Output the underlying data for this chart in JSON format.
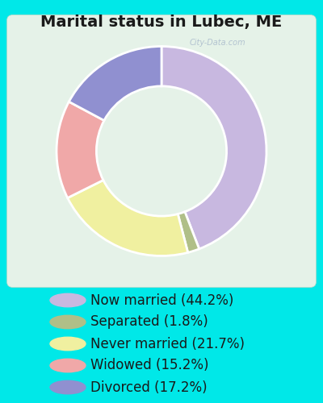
{
  "title": "Marital status in Lubec, ME",
  "bg_cyan": "#00e8e8",
  "bg_chart": "#e8f5ee",
  "slices": [
    {
      "label": "Now married (44.2%)",
      "value": 44.2,
      "color": "#c8b8e0"
    },
    {
      "label": "Separated (1.8%)",
      "value": 1.8,
      "color": "#b0bf88"
    },
    {
      "label": "Never married (21.7%)",
      "value": 21.7,
      "color": "#f0f0a0"
    },
    {
      "label": "Widowed (15.2%)",
      "value": 15.2,
      "color": "#f0a8a8"
    },
    {
      "label": "Divorced (17.2%)",
      "value": 17.2,
      "color": "#9090d0"
    }
  ],
  "legend_labels": [
    "Now married (44.2%)",
    "Separated (1.8%)",
    "Never married (21.7%)",
    "Widowed (15.2%)",
    "Divorced (17.2%)"
  ],
  "legend_colors": [
    "#c8b8e0",
    "#b0bf88",
    "#f0f0a0",
    "#f0a8a8",
    "#9090d0"
  ],
  "title_fontsize": 14,
  "legend_fontsize": 12,
  "donut_width": 0.38,
  "start_angle": 90,
  "watermark": "City-Data.com"
}
